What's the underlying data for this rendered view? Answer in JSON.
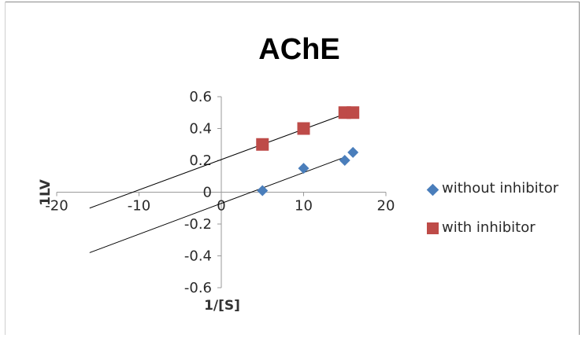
{
  "chart_data": {
    "type": "scatter",
    "title": "AChE",
    "xlabel": "1/[S]",
    "ylabel": "1LV",
    "xlim": [
      -20,
      20
    ],
    "ylim": [
      -0.6,
      0.6
    ],
    "x_ticks": [
      "-20",
      "-10",
      "0",
      "10",
      "20"
    ],
    "y_ticks": [
      "0.6",
      "0.4",
      "0.2",
      "0",
      "-0.2",
      "-0.4",
      "-0.6"
    ],
    "grid": false,
    "legend_position": "right",
    "series": [
      {
        "name": "without inhibitor",
        "marker": "diamond",
        "color": "#4a7ebb",
        "x": [
          5,
          10,
          15,
          16
        ],
        "y": [
          0.01,
          0.15,
          0.2,
          0.25
        ],
        "trendline": {
          "x": [
            -16,
            15
          ],
          "y": [
            -0.38,
            0.22
          ]
        }
      },
      {
        "name": "with inhibitor",
        "marker": "square",
        "color": "#be4b48",
        "x": [
          5,
          10,
          15,
          16
        ],
        "y": [
          0.3,
          0.4,
          0.5,
          0.5
        ],
        "trendline": {
          "x": [
            -16,
            16
          ],
          "y": [
            -0.1,
            0.51
          ]
        }
      }
    ]
  }
}
